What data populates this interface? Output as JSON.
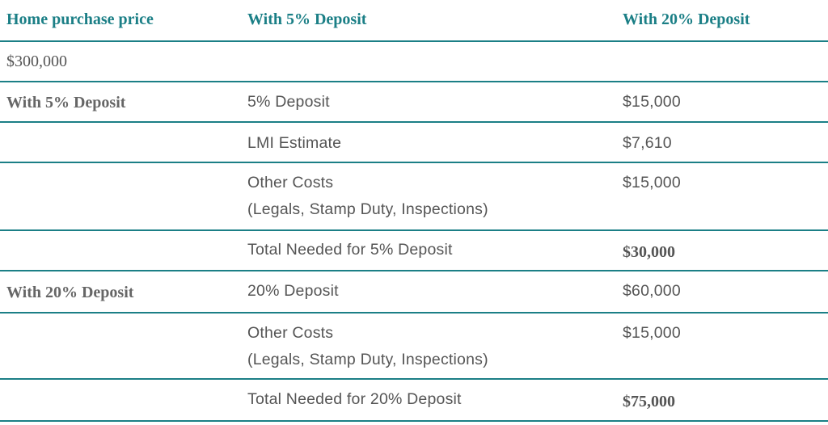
{
  "header": {
    "col1": "Home purchase price",
    "col2": "With 5% Deposit",
    "col3": "With 20% Deposit"
  },
  "price": "$300,000",
  "section_5": {
    "label": "With 5% Deposit",
    "rows": [
      {
        "item": "5% Deposit",
        "amount": "$15,000"
      },
      {
        "item": "LMI Estimate",
        "amount": "$7,610"
      },
      {
        "item": "Other Costs",
        "item_line2": "(Legals, Stamp Duty, Inspections)",
        "amount": "$15,000"
      },
      {
        "item": "Total Needed for 5% Deposit",
        "amount": "$30,000"
      }
    ]
  },
  "section_20": {
    "label": "With 20% Deposit",
    "rows": [
      {
        "item": "20% Deposit",
        "amount": "$60,000"
      },
      {
        "item": "Other Costs",
        "item_line2": "(Legals, Stamp Duty, Inspections)",
        "amount": "$15,000"
      },
      {
        "item": "Total Needed for 20% Deposit",
        "amount": "$75,000"
      }
    ]
  },
  "colors": {
    "accent": "#1b7f86",
    "text": "#555555"
  }
}
